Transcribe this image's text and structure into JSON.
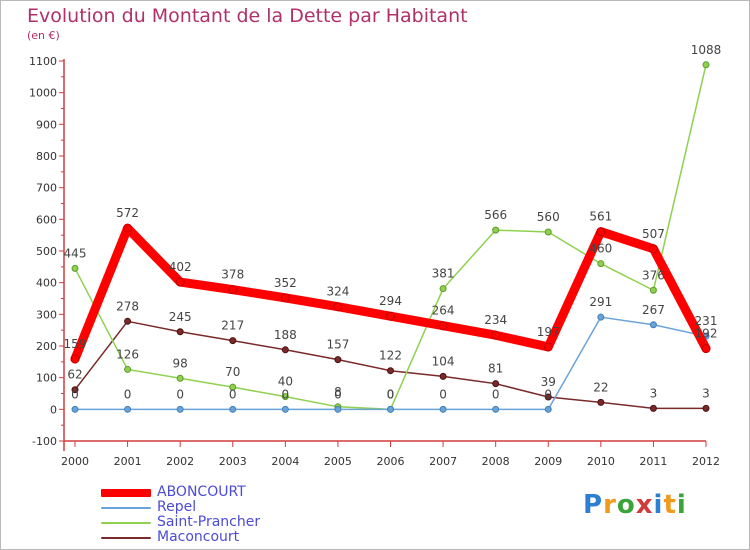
{
  "header": {
    "title": "Evolution du Montant de la Dette par Habitant",
    "unit": "(en €)"
  },
  "logo": {
    "letters": [
      "P",
      "r",
      "o",
      "x",
      "i",
      "t",
      "i"
    ],
    "colors": [
      "#2d7fd1",
      "#f29a1b",
      "#3aa33a",
      "#d03a3a",
      "#2d7fd1",
      "#f29a1b",
      "#3aa33a"
    ]
  },
  "chart_data": {
    "type": "line",
    "title": "Evolution du Montant de la Dette par Habitant",
    "ylabel": "(en €)",
    "xlabel": "",
    "x": [
      "2000",
      "2001",
      "2002",
      "2003",
      "2004",
      "2005",
      "2006",
      "2007",
      "2008",
      "2009",
      "2010",
      "2011",
      "2012"
    ],
    "ylim": [
      -100,
      1100
    ],
    "yticks": [
      "-100",
      "0",
      "100",
      "200",
      "300",
      "400",
      "500",
      "600",
      "700",
      "800",
      "900",
      "1000",
      "1100"
    ],
    "grid": false,
    "legend": "bottom-left",
    "series": [
      {
        "name": "ABONCOURT",
        "color": "#ff0000",
        "values": [
          159,
          572,
          402,
          378,
          352,
          324,
          294,
          264,
          234,
          197,
          561,
          507,
          192
        ],
        "labels": [
          "159",
          "572",
          "402",
          "378",
          "352",
          "324",
          "294",
          "264",
          "234",
          "197",
          "561",
          "507",
          "192"
        ]
      },
      {
        "name": "Repel",
        "color": "#6aa3d8",
        "values": [
          0,
          0,
          0,
          0,
          0,
          0,
          0,
          0,
          0,
          0,
          291,
          267,
          231
        ],
        "labels": [
          "0",
          "0",
          "0",
          "0",
          "0",
          "0",
          "0",
          "0",
          "0",
          "0",
          "291",
          "267",
          "231"
        ]
      },
      {
        "name": "Saint-Prancher",
        "color": "#8fd14f",
        "values": [
          445,
          126,
          98,
          70,
          40,
          8,
          0,
          381,
          566,
          560,
          460,
          376,
          1088
        ],
        "labels": [
          "445",
          "126",
          "98",
          "70",
          "40",
          "8",
          "0",
          "381",
          "566",
          "560",
          "460",
          "376",
          "1088"
        ]
      },
      {
        "name": "Maconcourt",
        "color": "#7a2a2a",
        "values": [
          62,
          278,
          245,
          217,
          188,
          157,
          122,
          104,
          81,
          39,
          22,
          3,
          3
        ],
        "labels": [
          "62",
          "278",
          "245",
          "217",
          "188",
          "157",
          "122",
          "104",
          "81",
          "39",
          "22",
          "3",
          "3"
        ]
      }
    ]
  }
}
